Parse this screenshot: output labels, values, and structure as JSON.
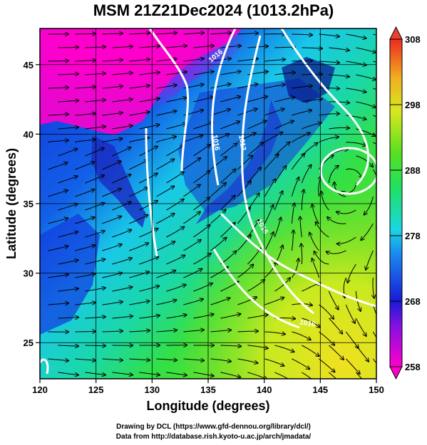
{
  "title": "MSM 21Z21Dec2024 (1013.2hPa)",
  "x_axis": {
    "label": "Longitude (degrees)",
    "ticks": [
      "120",
      "125",
      "130",
      "135",
      "140",
      "145",
      "150"
    ],
    "range": [
      120,
      150
    ]
  },
  "y_axis": {
    "label": "Latitude  (degrees)",
    "ticks": [
      "25",
      "30",
      "35",
      "40",
      "45"
    ],
    "range": [
      22.4,
      47.6
    ]
  },
  "colorbar": {
    "ticks": [
      "258",
      "268",
      "278",
      "288",
      "298",
      "308"
    ],
    "range": [
      258,
      308
    ]
  },
  "contour_labels": [
    "1016",
    "1016",
    "1012",
    "1016",
    "1016"
  ],
  "colors": {
    "cold": "#ff00cc",
    "mid_cold": "#0a2ad8",
    "mid": "#19d8e0",
    "warm": "#33e033",
    "hot": "#f0e020",
    "contour": "#ffffff",
    "streamline": "#000000"
  },
  "credits": {
    "line1": "Drawing by DCL (https://www.gfd-dennou.org/library/dcl/)",
    "line2": "Data from http://database.rish.kyoto-u.ac.jp/arch/jmadata/"
  }
}
